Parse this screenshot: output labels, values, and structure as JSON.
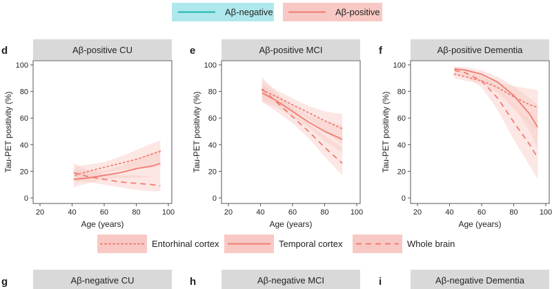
{
  "colors": {
    "positive": "#f07b72",
    "negative": "#1fb5ad",
    "negative_fill": "#aee8ec",
    "band": "#f8c9c4",
    "strip": "#d9d9d9",
    "axis": "#555555",
    "text": "#222222"
  },
  "legend_top": {
    "items": [
      {
        "label": "Aβ-negative",
        "group": "negative"
      },
      {
        "label": "Aβ-positive",
        "group": "positive"
      }
    ]
  },
  "legend_bottom": {
    "items": [
      {
        "label": "Entorhinal cortex",
        "style": "dotted"
      },
      {
        "label": "Temporal cortex",
        "style": "solid"
      },
      {
        "label": "Whole brain",
        "style": "dashed"
      }
    ]
  },
  "chart_data": [
    {
      "type": "line",
      "panel": "d",
      "title": "Aβ-positive CU",
      "xlabel": "Age (years)",
      "ylabel": "Tau-PET positivity (%)",
      "xlim": [
        20,
        100
      ],
      "ylim": [
        0,
        100
      ],
      "xticks": [
        20,
        40,
        60,
        80,
        100
      ],
      "yticks": [
        0,
        20,
        40,
        60,
        80,
        100
      ],
      "series": [
        {
          "name": "Entorhinal cortex",
          "style": "dotted",
          "x": [
            42,
            50,
            60,
            70,
            80,
            90,
            95
          ],
          "y": [
            17,
            20,
            23,
            26,
            29,
            33,
            35
          ],
          "lower": [
            11,
            15,
            19,
            21,
            22,
            23,
            24
          ],
          "upper": [
            24,
            25,
            27,
            31,
            36,
            41,
            43
          ]
        },
        {
          "name": "Temporal cortex",
          "style": "solid",
          "x": [
            41,
            50,
            60,
            70,
            80,
            90,
            95
          ],
          "y": [
            14,
            15,
            17,
            19,
            22,
            24,
            26
          ],
          "lower": [
            8,
            11,
            14,
            15,
            15,
            16,
            16
          ],
          "upper": [
            21,
            20,
            21,
            24,
            29,
            34,
            37
          ]
        },
        {
          "name": "Whole brain",
          "style": "dashed",
          "x": [
            41,
            50,
            60,
            70,
            80,
            90,
            95
          ],
          "y": [
            19,
            16,
            14,
            12,
            11,
            10,
            9
          ],
          "lower": [
            13,
            12,
            10,
            8,
            6,
            5,
            5
          ],
          "upper": [
            26,
            21,
            18,
            17,
            17,
            16,
            16
          ]
        }
      ]
    },
    {
      "type": "line",
      "panel": "e",
      "title": "Aβ-positive MCI",
      "xlabel": "Age (years)",
      "ylabel": "Tau-PET positivity (%)",
      "xlim": [
        20,
        100
      ],
      "ylim": [
        0,
        100
      ],
      "xticks": [
        20,
        40,
        60,
        80,
        100
      ],
      "yticks": [
        0,
        20,
        40,
        60,
        80,
        100
      ],
      "series": [
        {
          "name": "Entorhinal cortex",
          "style": "dotted",
          "x": [
            41,
            50,
            60,
            70,
            80,
            91
          ],
          "y": [
            81,
            76,
            70,
            64,
            58,
            52
          ],
          "lower": [
            74,
            71,
            66,
            59,
            50,
            40
          ],
          "upper": [
            88,
            81,
            75,
            69,
            65,
            63
          ]
        },
        {
          "name": "Temporal cortex",
          "style": "solid",
          "x": [
            41,
            50,
            60,
            70,
            80,
            91
          ],
          "y": [
            79,
            73,
            65,
            57,
            50,
            44
          ],
          "lower": [
            72,
            68,
            61,
            53,
            43,
            34
          ],
          "upper": [
            85,
            78,
            70,
            62,
            58,
            55
          ]
        },
        {
          "name": "Whole brain",
          "style": "dashed",
          "x": [
            41,
            50,
            60,
            70,
            80,
            91
          ],
          "y": [
            82,
            72,
            61,
            50,
            38,
            26
          ],
          "lower": [
            72,
            65,
            56,
            45,
            31,
            17
          ],
          "upper": [
            91,
            79,
            67,
            56,
            47,
            38
          ]
        }
      ]
    },
    {
      "type": "line",
      "panel": "f",
      "title": "Aβ-positive Dementia",
      "xlabel": "Age (years)",
      "ylabel": "Tau-PET positivity (%)",
      "xlim": [
        20,
        100
      ],
      "ylim": [
        0,
        100
      ],
      "xticks": [
        20,
        40,
        60,
        80,
        100
      ],
      "yticks": [
        0,
        20,
        40,
        60,
        80,
        100
      ],
      "series": [
        {
          "name": "Entorhinal cortex",
          "style": "dotted",
          "x": [
            43,
            50,
            60,
            70,
            80,
            90,
            95
          ],
          "y": [
            93,
            91,
            88,
            83,
            76,
            70,
            68
          ],
          "lower": [
            90,
            88,
            86,
            79,
            67,
            56,
            50
          ],
          "upper": [
            96,
            94,
            91,
            87,
            84,
            82,
            81
          ]
        },
        {
          "name": "Temporal cortex",
          "style": "solid",
          "x": [
            43,
            50,
            60,
            70,
            80,
            90,
            95
          ],
          "y": [
            97,
            96,
            93,
            87,
            77,
            63,
            53
          ],
          "lower": [
            95,
            94,
            90,
            82,
            69,
            50,
            37
          ],
          "upper": [
            99,
            98,
            96,
            91,
            84,
            75,
            70
          ]
        },
        {
          "name": "Whole brain",
          "style": "dashed",
          "x": [
            43,
            50,
            60,
            70,
            80,
            90,
            95
          ],
          "y": [
            96,
            94,
            88,
            75,
            57,
            40,
            30
          ],
          "lower": [
            93,
            91,
            83,
            66,
            44,
            24,
            14
          ],
          "upper": [
            98,
            97,
            93,
            83,
            70,
            58,
            52
          ]
        }
      ]
    }
  ],
  "bottom_panels": [
    {
      "letter": "g",
      "title": "Aβ-negative CU"
    },
    {
      "letter": "h",
      "title": "Aβ-negative MCI"
    },
    {
      "letter": "i",
      "title": "Aβ-negative Dementia"
    }
  ]
}
